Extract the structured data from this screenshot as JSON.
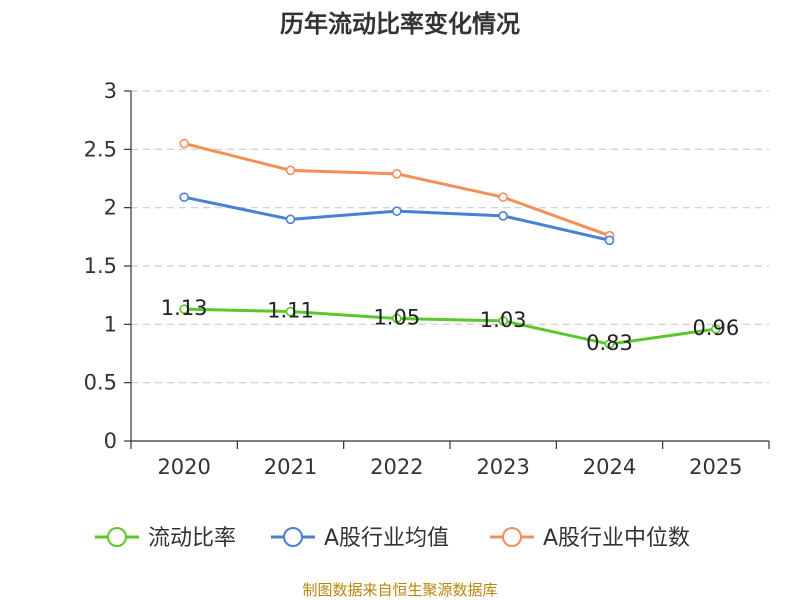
{
  "chart_data": {
    "type": "line",
    "title": "历年流动比率变化情况",
    "categories": [
      "2020",
      "2021",
      "2022",
      "2023",
      "2024",
      "2025"
    ],
    "ylim": [
      0,
      3
    ],
    "yticks": [
      "0",
      "0.5",
      "1",
      "1.5",
      "2",
      "2.5",
      "3"
    ],
    "ytick_values": [
      0,
      0.5,
      1,
      1.5,
      2,
      2.5,
      3
    ],
    "grid": true,
    "legend_position": "bottom",
    "series": [
      {
        "name": "流动比率",
        "color": "#5cc72a",
        "values": [
          1.13,
          1.11,
          1.05,
          1.03,
          0.83,
          0.96
        ],
        "labels": [
          "1.13",
          "1.11",
          "1.05",
          "1.03",
          "0.83",
          "0.96"
        ],
        "show_labels": true
      },
      {
        "name": "A股行业均值",
        "color": "#4a7fd6",
        "values": [
          2.09,
          1.9,
          1.97,
          1.93,
          1.72,
          null
        ],
        "show_labels": false
      },
      {
        "name": "A股行业中位数",
        "color": "#f58f58",
        "values": [
          2.55,
          2.32,
          2.29,
          2.09,
          1.76,
          null
        ],
        "show_labels": false
      }
    ]
  },
  "source_note": "制图数据来自恒生聚源数据库"
}
